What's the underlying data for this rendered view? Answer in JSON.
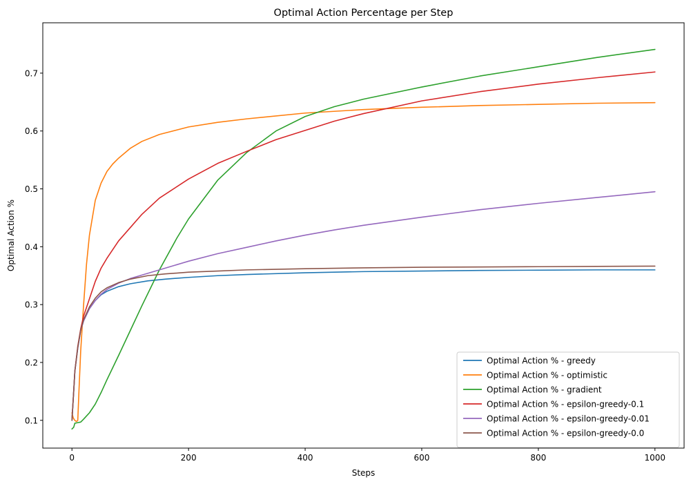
{
  "chart_data": {
    "type": "line",
    "title": "Optimal Action Percentage per Step",
    "xlabel": "Steps",
    "ylabel": "Optimal Action %",
    "xlim": [
      -50,
      1050
    ],
    "ylim": [
      0.052,
      0.787
    ],
    "xticks": [
      0,
      200,
      400,
      600,
      800,
      1000
    ],
    "yticks": [
      0.1,
      0.2,
      0.3,
      0.4,
      0.5,
      0.6,
      0.7
    ],
    "grid": false,
    "legend_position": "lower-right",
    "series": [
      {
        "name": "Optimal Action % - greedy",
        "color": "#1f77b4",
        "points": [
          [
            0,
            0.1
          ],
          [
            3,
            0.15
          ],
          [
            5,
            0.185
          ],
          [
            10,
            0.225
          ],
          [
            15,
            0.255
          ],
          [
            20,
            0.272
          ],
          [
            30,
            0.293
          ],
          [
            40,
            0.307
          ],
          [
            50,
            0.317
          ],
          [
            60,
            0.323
          ],
          [
            80,
            0.331
          ],
          [
            100,
            0.336
          ],
          [
            130,
            0.341
          ],
          [
            160,
            0.344
          ],
          [
            200,
            0.347
          ],
          [
            250,
            0.35
          ],
          [
            300,
            0.352
          ],
          [
            400,
            0.355
          ],
          [
            500,
            0.357
          ],
          [
            600,
            0.358
          ],
          [
            700,
            0.359
          ],
          [
            800,
            0.3595
          ],
          [
            900,
            0.36
          ],
          [
            1000,
            0.36
          ]
        ]
      },
      {
        "name": "Optimal Action % - optimistic",
        "color": "#ff7f0e",
        "points": [
          [
            0,
            0.113
          ],
          [
            2,
            0.105
          ],
          [
            4,
            0.101
          ],
          [
            6,
            0.099
          ],
          [
            8,
            0.098
          ],
          [
            10,
            0.1
          ],
          [
            12,
            0.15
          ],
          [
            15,
            0.22
          ],
          [
            20,
            0.3
          ],
          [
            25,
            0.37
          ],
          [
            30,
            0.42
          ],
          [
            40,
            0.48
          ],
          [
            50,
            0.51
          ],
          [
            60,
            0.53
          ],
          [
            70,
            0.543
          ],
          [
            80,
            0.553
          ],
          [
            100,
            0.57
          ],
          [
            120,
            0.582
          ],
          [
            150,
            0.594
          ],
          [
            200,
            0.607
          ],
          [
            250,
            0.615
          ],
          [
            300,
            0.621
          ],
          [
            400,
            0.631
          ],
          [
            500,
            0.637
          ],
          [
            600,
            0.641
          ],
          [
            700,
            0.644
          ],
          [
            800,
            0.646
          ],
          [
            900,
            0.648
          ],
          [
            1000,
            0.649
          ]
        ]
      },
      {
        "name": "Optimal Action % - gradient",
        "color": "#2ca02c",
        "points": [
          [
            0,
            0.085
          ],
          [
            3,
            0.088
          ],
          [
            5,
            0.095
          ],
          [
            10,
            0.096
          ],
          [
            15,
            0.097
          ],
          [
            20,
            0.102
          ],
          [
            30,
            0.113
          ],
          [
            40,
            0.128
          ],
          [
            50,
            0.148
          ],
          [
            60,
            0.17
          ],
          [
            80,
            0.212
          ],
          [
            100,
            0.255
          ],
          [
            120,
            0.298
          ],
          [
            150,
            0.36
          ],
          [
            180,
            0.415
          ],
          [
            200,
            0.448
          ],
          [
            250,
            0.515
          ],
          [
            300,
            0.563
          ],
          [
            350,
            0.6
          ],
          [
            400,
            0.625
          ],
          [
            450,
            0.642
          ],
          [
            500,
            0.655
          ],
          [
            600,
            0.676
          ],
          [
            700,
            0.695
          ],
          [
            800,
            0.711
          ],
          [
            900,
            0.727
          ],
          [
            1000,
            0.741
          ]
        ]
      },
      {
        "name": "Optimal Action % - epsilon-greedy-0.1",
        "color": "#d62728",
        "points": [
          [
            0,
            0.1
          ],
          [
            3,
            0.15
          ],
          [
            5,
            0.185
          ],
          [
            10,
            0.228
          ],
          [
            15,
            0.258
          ],
          [
            20,
            0.28
          ],
          [
            30,
            0.31
          ],
          [
            40,
            0.34
          ],
          [
            50,
            0.363
          ],
          [
            60,
            0.38
          ],
          [
            80,
            0.41
          ],
          [
            100,
            0.433
          ],
          [
            120,
            0.456
          ],
          [
            150,
            0.484
          ],
          [
            200,
            0.517
          ],
          [
            250,
            0.544
          ],
          [
            300,
            0.565
          ],
          [
            350,
            0.585
          ],
          [
            400,
            0.601
          ],
          [
            450,
            0.617
          ],
          [
            500,
            0.63
          ],
          [
            600,
            0.652
          ],
          [
            700,
            0.668
          ],
          [
            800,
            0.681
          ],
          [
            900,
            0.692
          ],
          [
            1000,
            0.702
          ]
        ]
      },
      {
        "name": "Optimal Action % - epsilon-greedy-0.01",
        "color": "#9467bd",
        "points": [
          [
            0,
            0.1
          ],
          [
            3,
            0.15
          ],
          [
            5,
            0.185
          ],
          [
            10,
            0.225
          ],
          [
            15,
            0.255
          ],
          [
            20,
            0.272
          ],
          [
            30,
            0.293
          ],
          [
            40,
            0.307
          ],
          [
            50,
            0.318
          ],
          [
            60,
            0.326
          ],
          [
            80,
            0.337
          ],
          [
            100,
            0.345
          ],
          [
            120,
            0.351
          ],
          [
            150,
            0.36
          ],
          [
            200,
            0.375
          ],
          [
            250,
            0.388
          ],
          [
            300,
            0.399
          ],
          [
            350,
            0.41
          ],
          [
            400,
            0.42
          ],
          [
            450,
            0.429
          ],
          [
            500,
            0.437
          ],
          [
            600,
            0.451
          ],
          [
            700,
            0.464
          ],
          [
            800,
            0.475
          ],
          [
            900,
            0.485
          ],
          [
            1000,
            0.495
          ]
        ]
      },
      {
        "name": "Optimal Action % - epsilon-greedy-0.0",
        "color": "#8c564b",
        "points": [
          [
            0,
            0.1
          ],
          [
            3,
            0.15
          ],
          [
            5,
            0.185
          ],
          [
            10,
            0.226
          ],
          [
            15,
            0.256
          ],
          [
            20,
            0.274
          ],
          [
            30,
            0.296
          ],
          [
            40,
            0.311
          ],
          [
            50,
            0.322
          ],
          [
            60,
            0.329
          ],
          [
            80,
            0.338
          ],
          [
            100,
            0.344
          ],
          [
            130,
            0.35
          ],
          [
            160,
            0.353
          ],
          [
            200,
            0.356
          ],
          [
            250,
            0.358
          ],
          [
            300,
            0.36
          ],
          [
            400,
            0.362
          ],
          [
            500,
            0.3635
          ],
          [
            600,
            0.3645
          ],
          [
            700,
            0.365
          ],
          [
            800,
            0.3655
          ],
          [
            900,
            0.366
          ],
          [
            1000,
            0.3665
          ]
        ]
      }
    ]
  }
}
